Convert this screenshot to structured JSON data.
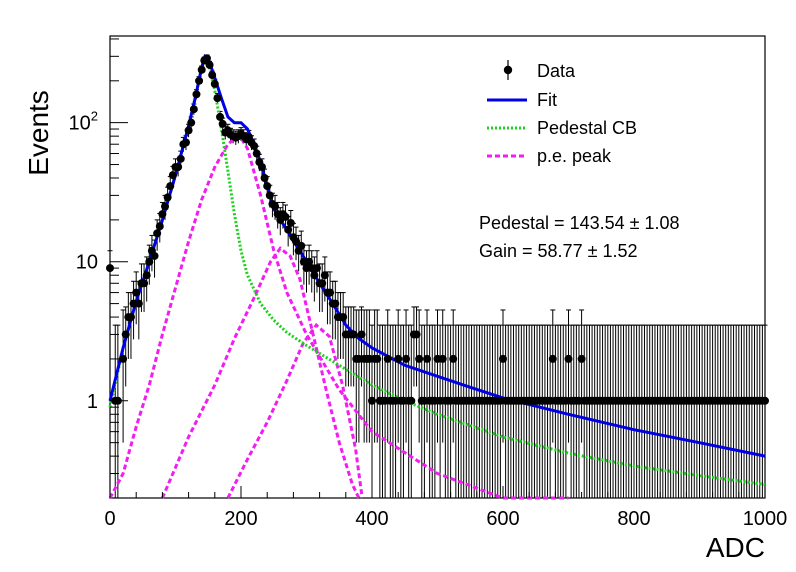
{
  "chart_data": {
    "type": "scatter",
    "xlabel": "ADC",
    "ylabel": "Events",
    "log_y": true,
    "xlim": [
      0,
      1000
    ],
    "ylim": [
      0.2,
      420
    ],
    "x_ticks": [
      0,
      200,
      400,
      600,
      800,
      1000
    ],
    "y_ticks": [
      {
        "value": 1,
        "label": "1"
      },
      {
        "value": 10,
        "label": "10"
      },
      {
        "value": 100,
        "label": "10²"
      }
    ],
    "legend": {
      "position": "top-right",
      "entries": [
        {
          "label": "Data",
          "kind": "marker",
          "color": "#000000"
        },
        {
          "label": "Fit",
          "kind": "line",
          "color": "#0000e6"
        },
        {
          "label": "Pedestal CB",
          "kind": "dotted",
          "color": "#19d219"
        },
        {
          "label": "p.e. peak",
          "kind": "dashed",
          "color": "#f01ef0"
        }
      ]
    },
    "annotations": [
      "Pedestal = 143.54 ± 1.08",
      "Gain = 58.77 ± 1.52"
    ],
    "data_points": [
      [
        0,
        9
      ],
      [
        8,
        1
      ],
      [
        12,
        1
      ],
      [
        20,
        2
      ],
      [
        24,
        3
      ],
      [
        28,
        4
      ],
      [
        32,
        4
      ],
      [
        36,
        5
      ],
      [
        40,
        6
      ],
      [
        44,
        5
      ],
      [
        48,
        7
      ],
      [
        52,
        7
      ],
      [
        56,
        8
      ],
      [
        60,
        10
      ],
      [
        64,
        12
      ],
      [
        68,
        11
      ],
      [
        72,
        16
      ],
      [
        76,
        18
      ],
      [
        80,
        22
      ],
      [
        84,
        25
      ],
      [
        88,
        29
      ],
      [
        92,
        35
      ],
      [
        96,
        42
      ],
      [
        100,
        48
      ],
      [
        104,
        48
      ],
      [
        108,
        55
      ],
      [
        112,
        70
      ],
      [
        116,
        72
      ],
      [
        120,
        88
      ],
      [
        124,
        100
      ],
      [
        128,
        125
      ],
      [
        132,
        160
      ],
      [
        136,
        200
      ],
      [
        140,
        240
      ],
      [
        144,
        280
      ],
      [
        148,
        290
      ],
      [
        152,
        260
      ],
      [
        156,
        220
      ],
      [
        160,
        190
      ],
      [
        164,
        150
      ],
      [
        168,
        110
      ],
      [
        172,
        98
      ],
      [
        176,
        85
      ],
      [
        180,
        88
      ],
      [
        184,
        82
      ],
      [
        188,
        80
      ],
      [
        192,
        78
      ],
      [
        196,
        80
      ],
      [
        200,
        83
      ],
      [
        204,
        80
      ],
      [
        208,
        76
      ],
      [
        212,
        79
      ],
      [
        216,
        72
      ],
      [
        220,
        68
      ],
      [
        224,
        60
      ],
      [
        228,
        52
      ],
      [
        232,
        48
      ],
      [
        236,
        40
      ],
      [
        240,
        35
      ],
      [
        244,
        30
      ],
      [
        248,
        26
      ],
      [
        252,
        25
      ],
      [
        256,
        22
      ],
      [
        260,
        20
      ],
      [
        264,
        22
      ],
      [
        268,
        21
      ],
      [
        272,
        17
      ],
      [
        276,
        19
      ],
      [
        280,
        15
      ],
      [
        284,
        14
      ],
      [
        288,
        12
      ],
      [
        292,
        13
      ],
      [
        296,
        10
      ],
      [
        300,
        9
      ],
      [
        304,
        10
      ],
      [
        308,
        9
      ],
      [
        312,
        8
      ],
      [
        316,
        9
      ],
      [
        320,
        7
      ],
      [
        324,
        7
      ],
      [
        328,
        8
      ],
      [
        332,
        6
      ],
      [
        336,
        6
      ],
      [
        340,
        5
      ],
      [
        344,
        5
      ],
      [
        348,
        4
      ],
      [
        352,
        4
      ],
      [
        356,
        4
      ],
      [
        360,
        3
      ],
      [
        364,
        3
      ],
      [
        368,
        3
      ],
      [
        372,
        3
      ],
      [
        376,
        2
      ],
      [
        380,
        2
      ],
      [
        384,
        3
      ],
      [
        388,
        2
      ],
      [
        392,
        2
      ],
      [
        396,
        2
      ],
      [
        400,
        1
      ],
      [
        404,
        2
      ],
      [
        408,
        2
      ],
      [
        412,
        1
      ],
      [
        416,
        1
      ],
      [
        420,
        1
      ],
      [
        424,
        2
      ],
      [
        428,
        1
      ],
      [
        432,
        1
      ],
      [
        436,
        1
      ],
      [
        440,
        2
      ],
      [
        444,
        1
      ],
      [
        448,
        1
      ],
      [
        452,
        2
      ],
      [
        456,
        1
      ],
      [
        460,
        1
      ],
      [
        464,
        3
      ],
      [
        468,
        3
      ],
      [
        472,
        2
      ],
      [
        476,
        1
      ],
      [
        480,
        1
      ],
      [
        484,
        2
      ],
      [
        488,
        1
      ],
      [
        492,
        1
      ],
      [
        496,
        1
      ],
      [
        500,
        2
      ],
      [
        504,
        1
      ],
      [
        508,
        2
      ],
      [
        512,
        1
      ],
      [
        516,
        1
      ],
      [
        520,
        1
      ],
      [
        524,
        2
      ],
      [
        528,
        1
      ],
      [
        532,
        1
      ],
      [
        536,
        1
      ],
      [
        540,
        1
      ],
      [
        544,
        1
      ],
      [
        548,
        1
      ],
      [
        552,
        1
      ],
      [
        556,
        1
      ],
      [
        560,
        1
      ],
      [
        564,
        1
      ],
      [
        568,
        1
      ],
      [
        572,
        1
      ],
      [
        576,
        1
      ],
      [
        580,
        1
      ],
      [
        584,
        1
      ],
      [
        588,
        1
      ],
      [
        592,
        1
      ],
      [
        596,
        1
      ],
      [
        600,
        2
      ],
      [
        604,
        1
      ],
      [
        608,
        1
      ],
      [
        612,
        1
      ],
      [
        616,
        1
      ],
      [
        620,
        1
      ],
      [
        624,
        1
      ],
      [
        628,
        1
      ],
      [
        632,
        1
      ],
      [
        636,
        1
      ],
      [
        640,
        1
      ],
      [
        644,
        1
      ],
      [
        648,
        1
      ],
      [
        652,
        1
      ],
      [
        656,
        1
      ],
      [
        660,
        1
      ],
      [
        664,
        1
      ],
      [
        668,
        1
      ],
      [
        672,
        1
      ],
      [
        676,
        2
      ],
      [
        680,
        1
      ],
      [
        684,
        1
      ],
      [
        688,
        1
      ],
      [
        692,
        1
      ],
      [
        696,
        1
      ],
      [
        700,
        2
      ],
      [
        704,
        1
      ],
      [
        708,
        1
      ],
      [
        712,
        1
      ],
      [
        716,
        1
      ],
      [
        720,
        2
      ],
      [
        724,
        1
      ],
      [
        728,
        1
      ],
      [
        732,
        1
      ],
      [
        736,
        1
      ],
      [
        740,
        1
      ],
      [
        744,
        1
      ],
      [
        748,
        1
      ],
      [
        752,
        1
      ],
      [
        756,
        1
      ],
      [
        760,
        1
      ],
      [
        764,
        1
      ],
      [
        768,
        1
      ],
      [
        772,
        1
      ],
      [
        776,
        1
      ],
      [
        780,
        1
      ],
      [
        784,
        1
      ],
      [
        788,
        1
      ],
      [
        792,
        1
      ],
      [
        796,
        1
      ],
      [
        800,
        1
      ],
      [
        804,
        1
      ],
      [
        808,
        1
      ],
      [
        812,
        1
      ],
      [
        816,
        1
      ],
      [
        820,
        1
      ],
      [
        824,
        1
      ],
      [
        828,
        1
      ],
      [
        832,
        1
      ],
      [
        836,
        1
      ],
      [
        840,
        1
      ],
      [
        844,
        1
      ],
      [
        848,
        1
      ],
      [
        852,
        1
      ],
      [
        856,
        1
      ],
      [
        860,
        1
      ],
      [
        864,
        1
      ],
      [
        868,
        1
      ],
      [
        872,
        1
      ],
      [
        876,
        1
      ],
      [
        880,
        1
      ],
      [
        884,
        1
      ],
      [
        888,
        1
      ],
      [
        892,
        1
      ],
      [
        896,
        1
      ],
      [
        900,
        1
      ],
      [
        904,
        1
      ],
      [
        908,
        1
      ],
      [
        912,
        1
      ],
      [
        916,
        1
      ],
      [
        920,
        1
      ],
      [
        924,
        1
      ],
      [
        928,
        1
      ],
      [
        932,
        1
      ],
      [
        936,
        1
      ],
      [
        940,
        1
      ],
      [
        944,
        1
      ],
      [
        948,
        1
      ],
      [
        952,
        1
      ],
      [
        956,
        1
      ],
      [
        960,
        1
      ],
      [
        964,
        1
      ],
      [
        968,
        1
      ],
      [
        972,
        1
      ],
      [
        976,
        1
      ],
      [
        980,
        1
      ],
      [
        984,
        1
      ],
      [
        988,
        1
      ],
      [
        992,
        1
      ],
      [
        996,
        1
      ],
      [
        1000,
        1
      ]
    ],
    "fit_curve": [
      [
        0,
        1.0
      ],
      [
        20,
        2.4
      ],
      [
        40,
        5.2
      ],
      [
        60,
        10
      ],
      [
        80,
        20
      ],
      [
        100,
        42
      ],
      [
        120,
        95
      ],
      [
        130,
        150
      ],
      [
        140,
        250
      ],
      [
        145,
        300
      ],
      [
        150,
        290
      ],
      [
        160,
        210
      ],
      [
        170,
        150
      ],
      [
        180,
        110
      ],
      [
        190,
        100
      ],
      [
        200,
        100
      ],
      [
        210,
        90
      ],
      [
        220,
        70
      ],
      [
        230,
        52
      ],
      [
        240,
        35
      ],
      [
        250,
        24
      ],
      [
        260,
        20
      ],
      [
        270,
        17
      ],
      [
        280,
        14
      ],
      [
        290,
        12
      ],
      [
        300,
        10
      ],
      [
        320,
        7
      ],
      [
        340,
        5
      ],
      [
        360,
        3.5
      ],
      [
        380,
        2.8
      ],
      [
        400,
        2.4
      ],
      [
        450,
        1.8
      ],
      [
        500,
        1.5
      ],
      [
        550,
        1.25
      ],
      [
        600,
        1.05
      ],
      [
        700,
        0.8
      ],
      [
        800,
        0.62
      ],
      [
        900,
        0.5
      ],
      [
        1000,
        0.4
      ]
    ],
    "pedestal_cb": [
      [
        0,
        0.9
      ],
      [
        20,
        2.4
      ],
      [
        40,
        5.2
      ],
      [
        60,
        10
      ],
      [
        80,
        20
      ],
      [
        100,
        42
      ],
      [
        120,
        95
      ],
      [
        130,
        150
      ],
      [
        140,
        250
      ],
      [
        145,
        290
      ],
      [
        150,
        270
      ],
      [
        160,
        170
      ],
      [
        170,
        90
      ],
      [
        180,
        45
      ],
      [
        190,
        22
      ],
      [
        200,
        12
      ],
      [
        210,
        8
      ],
      [
        230,
        5
      ],
      [
        250,
        3.8
      ],
      [
        270,
        3.1
      ],
      [
        300,
        2.5
      ],
      [
        350,
        1.8
      ],
      [
        400,
        1.3
      ],
      [
        450,
        1.0
      ],
      [
        500,
        0.8
      ],
      [
        600,
        0.55
      ],
      [
        700,
        0.42
      ],
      [
        800,
        0.34
      ],
      [
        900,
        0.29
      ],
      [
        1000,
        0.25
      ]
    ],
    "pe_peaks": [
      [
        [
          0,
          0.12
        ],
        [
          20,
          0.3
        ],
        [
          40,
          0.65
        ],
        [
          60,
          1.3
        ],
        [
          80,
          3
        ],
        [
          100,
          6.5
        ],
        [
          120,
          14
        ],
        [
          140,
          28
        ],
        [
          160,
          48
        ],
        [
          180,
          70
        ],
        [
          195,
          80
        ],
        [
          200,
          78
        ],
        [
          210,
          65
        ],
        [
          230,
          30
        ],
        [
          250,
          12
        ],
        [
          270,
          6
        ],
        [
          300,
          3
        ],
        [
          350,
          1.2
        ],
        [
          400,
          0.6
        ],
        [
          500,
          0.3
        ],
        [
          600,
          0.2
        ],
        [
          700,
          0.2
        ]
      ],
      [
        [
          80,
          0.2
        ],
        [
          120,
          0.55
        ],
        [
          160,
          1.3
        ],
        [
          190,
          2.8
        ],
        [
          220,
          5.5
        ],
        [
          245,
          10
        ],
        [
          260,
          12.5
        ],
        [
          275,
          11
        ],
        [
          290,
          7.5
        ],
        [
          310,
          3
        ],
        [
          330,
          1.2
        ],
        [
          350,
          0.5
        ],
        [
          370,
          0.25
        ],
        [
          380,
          0.2
        ]
      ],
      [
        [
          180,
          0.2
        ],
        [
          210,
          0.38
        ],
        [
          240,
          0.7
        ],
        [
          270,
          1.4
        ],
        [
          295,
          2.6
        ],
        [
          315,
          3.5
        ],
        [
          335,
          2.9
        ],
        [
          355,
          1.3
        ],
        [
          375,
          0.45
        ],
        [
          385,
          0.2
        ]
      ]
    ]
  }
}
